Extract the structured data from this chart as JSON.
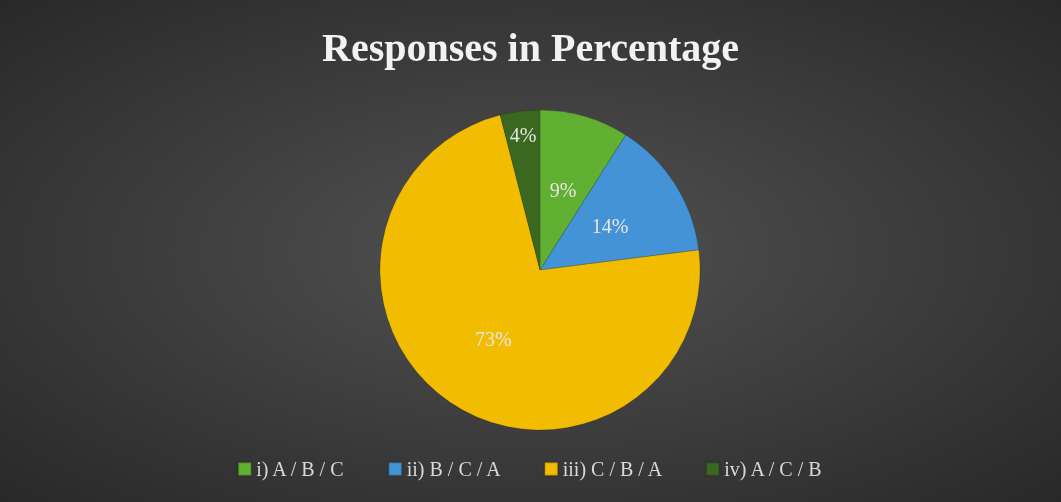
{
  "chart_data": {
    "type": "pie",
    "title": "Responses in Percentage",
    "categories": [
      "i) A / B / C",
      "ii) B / C / A",
      "iii) C / B / A",
      "iv) A / C / B"
    ],
    "values": [
      9,
      14,
      73,
      4
    ],
    "colors": [
      "#62b032",
      "#4393d6",
      "#f2bc00",
      "#3a6820"
    ],
    "value_labels": [
      "9%",
      "14%",
      "73%",
      "4%"
    ],
    "legend": "bottom"
  }
}
